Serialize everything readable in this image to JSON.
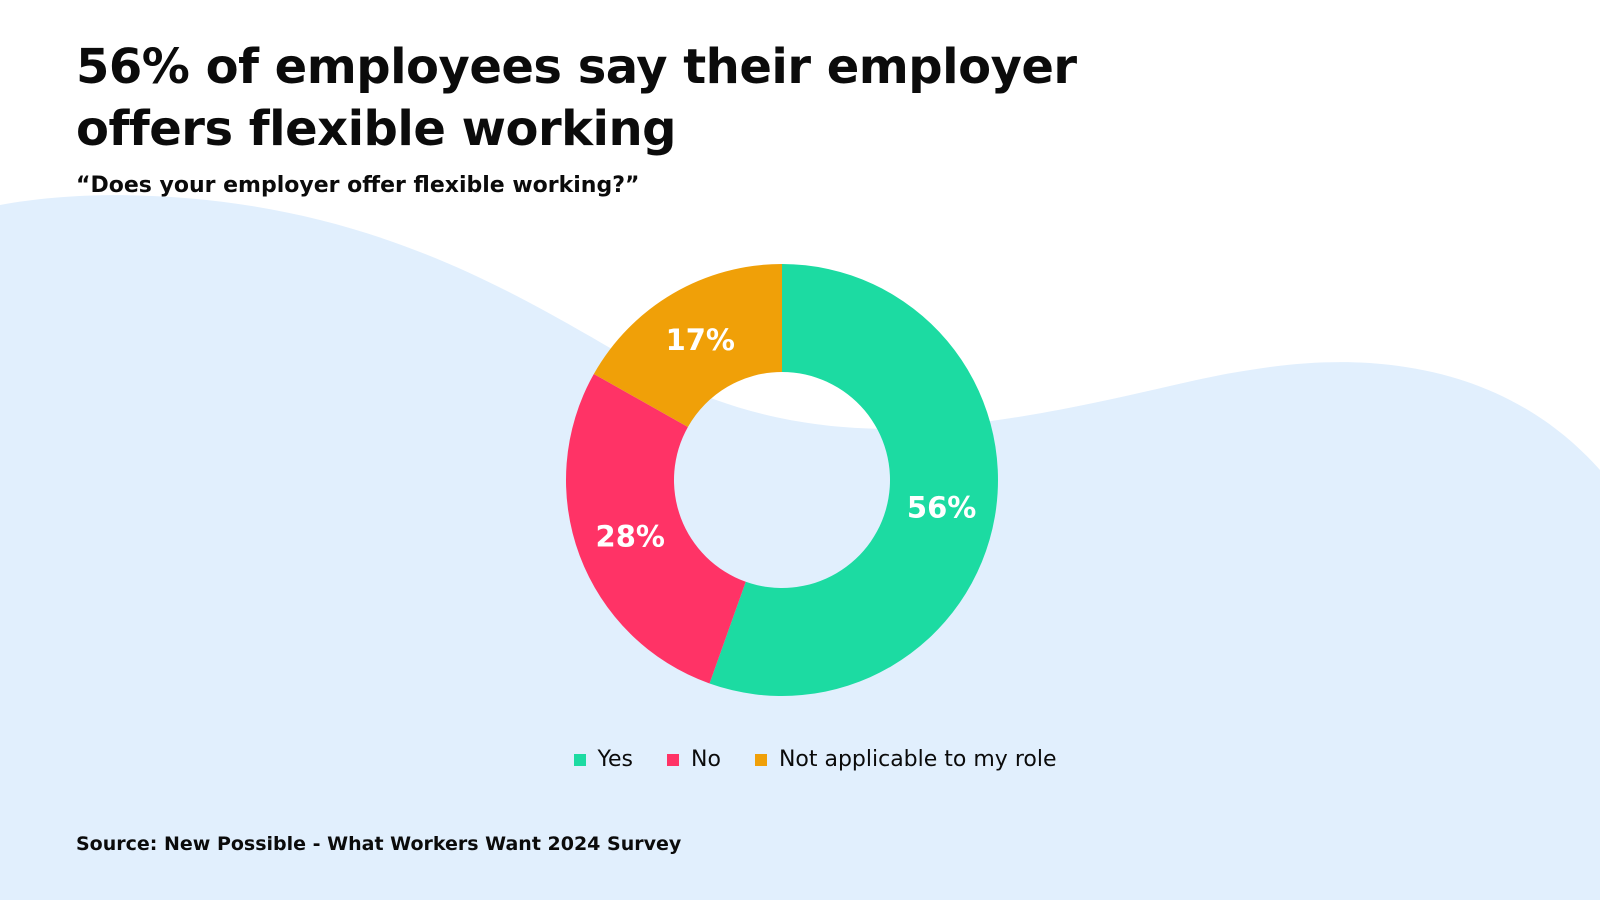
{
  "title": "56% of employees say their employer offers flexible working",
  "subtitle": "“Does your employer offer flexible working?”",
  "source": "Source: New Possible - What Workers Want 2024 Survey",
  "colors": {
    "background": "#ffffff",
    "wave": "#e1effd",
    "yes": "#1cdba2",
    "no": "#ff3366",
    "not_applicable": "#f0a008"
  },
  "chart_data": {
    "type": "pie",
    "style": "donut",
    "categories": [
      "Yes",
      "No",
      "Not applicable to my role"
    ],
    "values": [
      56,
      28,
      17
    ],
    "labels": [
      "56%",
      "28%",
      "17%"
    ],
    "unit": "%",
    "legend_position": "bottom-center"
  }
}
